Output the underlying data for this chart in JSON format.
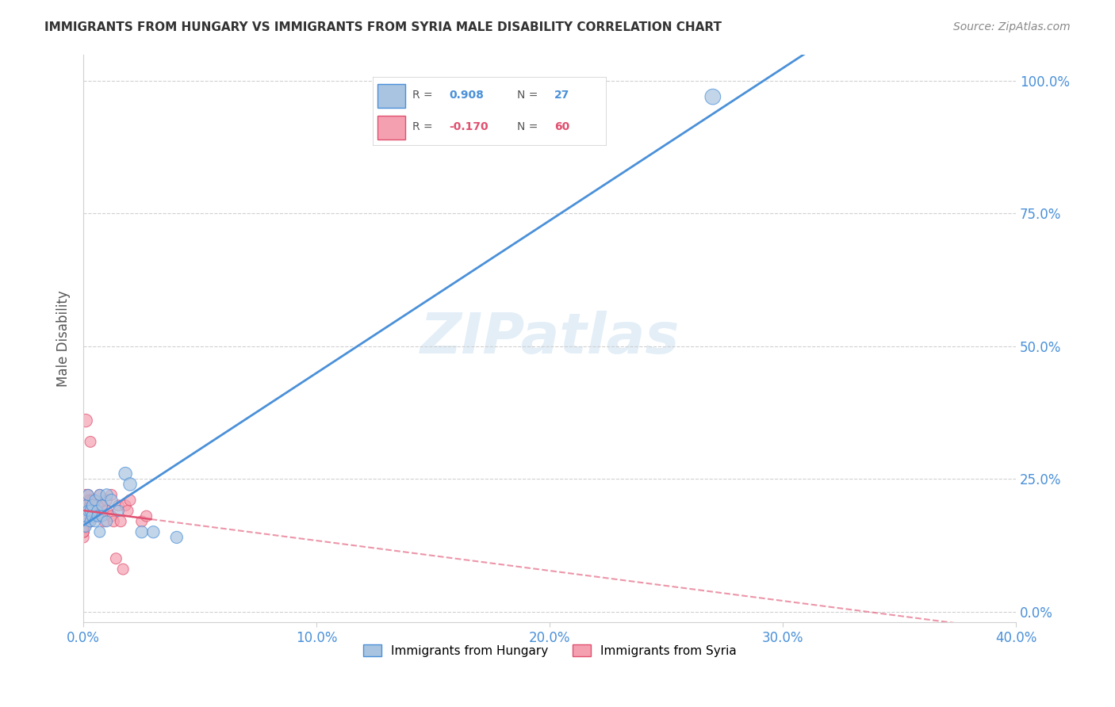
{
  "title": "IMMIGRANTS FROM HUNGARY VS IMMIGRANTS FROM SYRIA MALE DISABILITY CORRELATION CHART",
  "source": "Source: ZipAtlas.com",
  "xlabel_ticks": [
    "0.0%",
    "10.0%",
    "20.0%",
    "30.0%",
    "40.0%"
  ],
  "ylabel_ticks": [
    "0.0%",
    "25.0%",
    "50.0%",
    "75.0%",
    "100.0%"
  ],
  "ylabel_label": "Male Disability",
  "xlim": [
    0.0,
    0.4
  ],
  "ylim": [
    -0.02,
    1.05
  ],
  "watermark": "ZIPatlas",
  "hungary_R": 0.908,
  "hungary_N": 27,
  "syria_R": -0.17,
  "syria_N": 60,
  "hungary_color": "#a8c4e0",
  "hungary_line_color": "#4a90d9",
  "syria_color": "#f4a0b0",
  "syria_line_color": "#e05070",
  "grid_color": "#d0d0d0",
  "title_color": "#333333",
  "axis_label_color": "#4a90d9",
  "hungary_points": [
    [
      0.0,
      0.18
    ],
    [
      0.001,
      0.2
    ],
    [
      0.001,
      0.16
    ],
    [
      0.002,
      0.22
    ],
    [
      0.002,
      0.19
    ],
    [
      0.003,
      0.19
    ],
    [
      0.003,
      0.17
    ],
    [
      0.004,
      0.2
    ],
    [
      0.004,
      0.18
    ],
    [
      0.005,
      0.21
    ],
    [
      0.005,
      0.17
    ],
    [
      0.006,
      0.19
    ],
    [
      0.006,
      0.18
    ],
    [
      0.007,
      0.22
    ],
    [
      0.007,
      0.15
    ],
    [
      0.008,
      0.2
    ],
    [
      0.008,
      0.18
    ],
    [
      0.01,
      0.22
    ],
    [
      0.01,
      0.17
    ],
    [
      0.012,
      0.21
    ],
    [
      0.015,
      0.19
    ],
    [
      0.018,
      0.26
    ],
    [
      0.02,
      0.24
    ],
    [
      0.025,
      0.15
    ],
    [
      0.03,
      0.15
    ],
    [
      0.04,
      0.14
    ],
    [
      0.27,
      0.97
    ]
  ],
  "syria_points": [
    [
      0.0,
      0.18
    ],
    [
      0.0,
      0.17
    ],
    [
      0.0,
      0.16
    ],
    [
      0.0,
      0.15
    ],
    [
      0.0,
      0.19
    ],
    [
      0.0,
      0.2
    ],
    [
      0.0,
      0.14
    ],
    [
      0.0,
      0.18
    ],
    [
      0.0,
      0.17
    ],
    [
      0.0,
      0.16
    ],
    [
      0.0,
      0.15
    ],
    [
      0.0,
      0.18
    ],
    [
      0.001,
      0.17
    ],
    [
      0.001,
      0.19
    ],
    [
      0.001,
      0.21
    ],
    [
      0.001,
      0.2
    ],
    [
      0.001,
      0.18
    ],
    [
      0.001,
      0.17
    ],
    [
      0.001,
      0.22
    ],
    [
      0.002,
      0.2
    ],
    [
      0.002,
      0.19
    ],
    [
      0.002,
      0.21
    ],
    [
      0.002,
      0.18
    ],
    [
      0.002,
      0.22
    ],
    [
      0.003,
      0.2
    ],
    [
      0.003,
      0.21
    ],
    [
      0.003,
      0.19
    ],
    [
      0.003,
      0.17
    ],
    [
      0.004,
      0.2
    ],
    [
      0.004,
      0.21
    ],
    [
      0.004,
      0.19
    ],
    [
      0.005,
      0.2
    ],
    [
      0.005,
      0.18
    ],
    [
      0.006,
      0.19
    ],
    [
      0.006,
      0.2
    ],
    [
      0.007,
      0.18
    ],
    [
      0.007,
      0.22
    ],
    [
      0.008,
      0.2
    ],
    [
      0.009,
      0.17
    ],
    [
      0.01,
      0.19
    ],
    [
      0.01,
      0.21
    ],
    [
      0.012,
      0.18
    ],
    [
      0.012,
      0.22
    ],
    [
      0.013,
      0.17
    ],
    [
      0.014,
      0.1
    ],
    [
      0.015,
      0.2
    ],
    [
      0.016,
      0.17
    ],
    [
      0.017,
      0.08
    ],
    [
      0.018,
      0.2
    ],
    [
      0.019,
      0.19
    ],
    [
      0.02,
      0.21
    ],
    [
      0.025,
      0.17
    ],
    [
      0.027,
      0.18
    ],
    [
      0.003,
      0.32
    ],
    [
      0.001,
      0.36
    ],
    [
      0.0,
      0.16
    ],
    [
      0.0,
      0.17
    ],
    [
      0.0,
      0.15
    ],
    [
      0.0,
      0.18
    ],
    [
      0.0,
      0.16
    ]
  ],
  "hungary_sizes": [
    30,
    25,
    25,
    25,
    25,
    25,
    25,
    30,
    30,
    25,
    25,
    25,
    25,
    25,
    25,
    25,
    25,
    30,
    25,
    30,
    25,
    35,
    35,
    30,
    30,
    30,
    50
  ],
  "syria_sizes": [
    25,
    25,
    25,
    25,
    25,
    25,
    25,
    25,
    25,
    25,
    25,
    25,
    25,
    25,
    25,
    25,
    25,
    25,
    25,
    25,
    25,
    25,
    25,
    25,
    25,
    25,
    25,
    25,
    25,
    25,
    25,
    25,
    25,
    25,
    25,
    25,
    25,
    25,
    25,
    25,
    25,
    25,
    25,
    25,
    25,
    25,
    25,
    25,
    25,
    25,
    25,
    25,
    25,
    25,
    35,
    35,
    25,
    25,
    25,
    25
  ]
}
